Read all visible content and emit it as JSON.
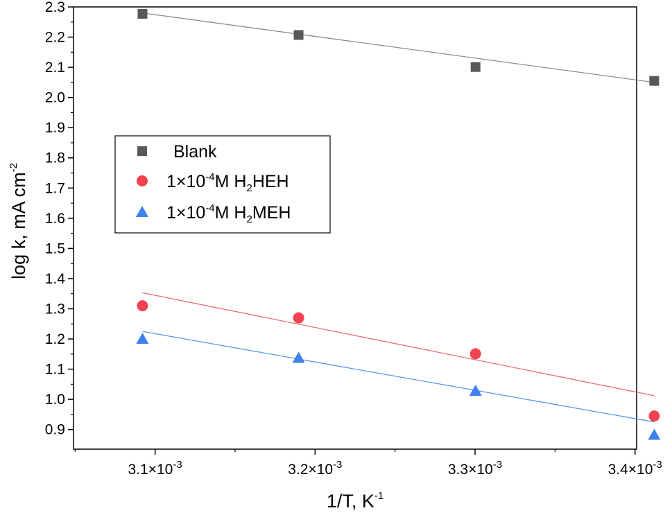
{
  "chart_data": {
    "type": "scatter",
    "xlabel": {
      "base": "1/T, K",
      "sup": "-1"
    },
    "ylabel": {
      "base": "log k, mA cm",
      "sup": "-2"
    },
    "xlim": [
      0.003049,
      0.003401
    ],
    "ylim": [
      0.835,
      2.3
    ],
    "x_tick_values": [
      0.0031,
      0.0032,
      0.0033,
      0.0034
    ],
    "x_ticks": [
      {
        "mant": "3.1×10",
        "exp": "-3"
      },
      {
        "mant": "3.2×10",
        "exp": "-3"
      },
      {
        "mant": "3.3×10",
        "exp": "-3"
      },
      {
        "mant": "3.4×10",
        "exp": "-3"
      }
    ],
    "y_tick_values": [
      0.9,
      1.0,
      1.1,
      1.2,
      1.3,
      1.4,
      1.5,
      1.6,
      1.7,
      1.8,
      1.9,
      2.0,
      2.1,
      2.2,
      2.3
    ],
    "y_ticks": [
      "0.9",
      "1.0",
      "1.1",
      "1.2",
      "1.3",
      "1.4",
      "1.5",
      "1.6",
      "1.7",
      "1.8",
      "1.9",
      "2.0",
      "2.1",
      "2.2",
      "2.3"
    ],
    "x": [
      0.0030921,
      0.0031897,
      0.0033003,
      0.003412
    ],
    "series": [
      {
        "name": "Blank",
        "legend_parts": [
          {
            "t": "Blank"
          }
        ],
        "marker": "square",
        "color": "#595959",
        "line_color": "#8c8c8c",
        "values": [
          2.277,
          2.207,
          2.101,
          2.055
        ],
        "fit": [
          2.28,
          2.05
        ]
      },
      {
        "name": "1×10-4M H2HEH",
        "legend_parts": [
          {
            "t": "1×10"
          },
          {
            "t": "-4",
            "s": "sup"
          },
          {
            "t": "M H"
          },
          {
            "t": "2",
            "s": "sub"
          },
          {
            "t": "HEH"
          }
        ],
        "marker": "circle",
        "color": "#f0434f",
        "line_color": "#f06a72",
        "values": [
          1.31,
          1.27,
          1.151,
          0.945
        ],
        "fit": [
          1.353,
          1.012
        ]
      },
      {
        "name": "1×10-4M H2MEH",
        "legend_parts": [
          {
            "t": "1×10"
          },
          {
            "t": "-4",
            "s": "sup"
          },
          {
            "t": "M H"
          },
          {
            "t": "2",
            "s": "sub"
          },
          {
            "t": "MEH"
          }
        ],
        "marker": "triangle",
        "color": "#3f82ee",
        "line_color": "#5a95ea",
        "values": [
          1.2,
          1.137,
          1.028,
          0.882
        ],
        "fit": [
          1.225,
          0.925
        ]
      }
    ]
  }
}
